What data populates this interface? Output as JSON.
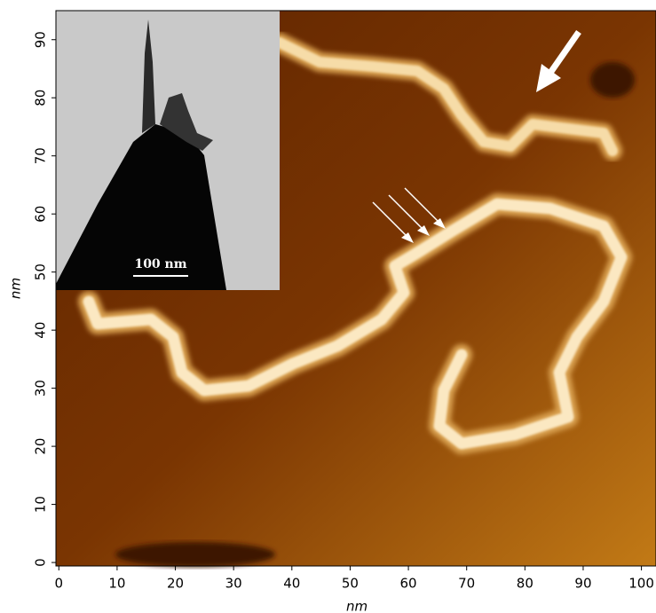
{
  "chart_data": {
    "type": "image",
    "xlabel": "nm",
    "ylabel": "nm",
    "xlim": [
      -0.5,
      102.5
    ],
    "ylim": [
      -0.6,
      95
    ],
    "xticks": [
      0,
      10,
      20,
      30,
      40,
      50,
      60,
      70,
      80,
      90,
      100
    ],
    "yticks": [
      0,
      10,
      20,
      30,
      40,
      50,
      60,
      70,
      80,
      90
    ],
    "inset_scale_label": "100 nm"
  }
}
